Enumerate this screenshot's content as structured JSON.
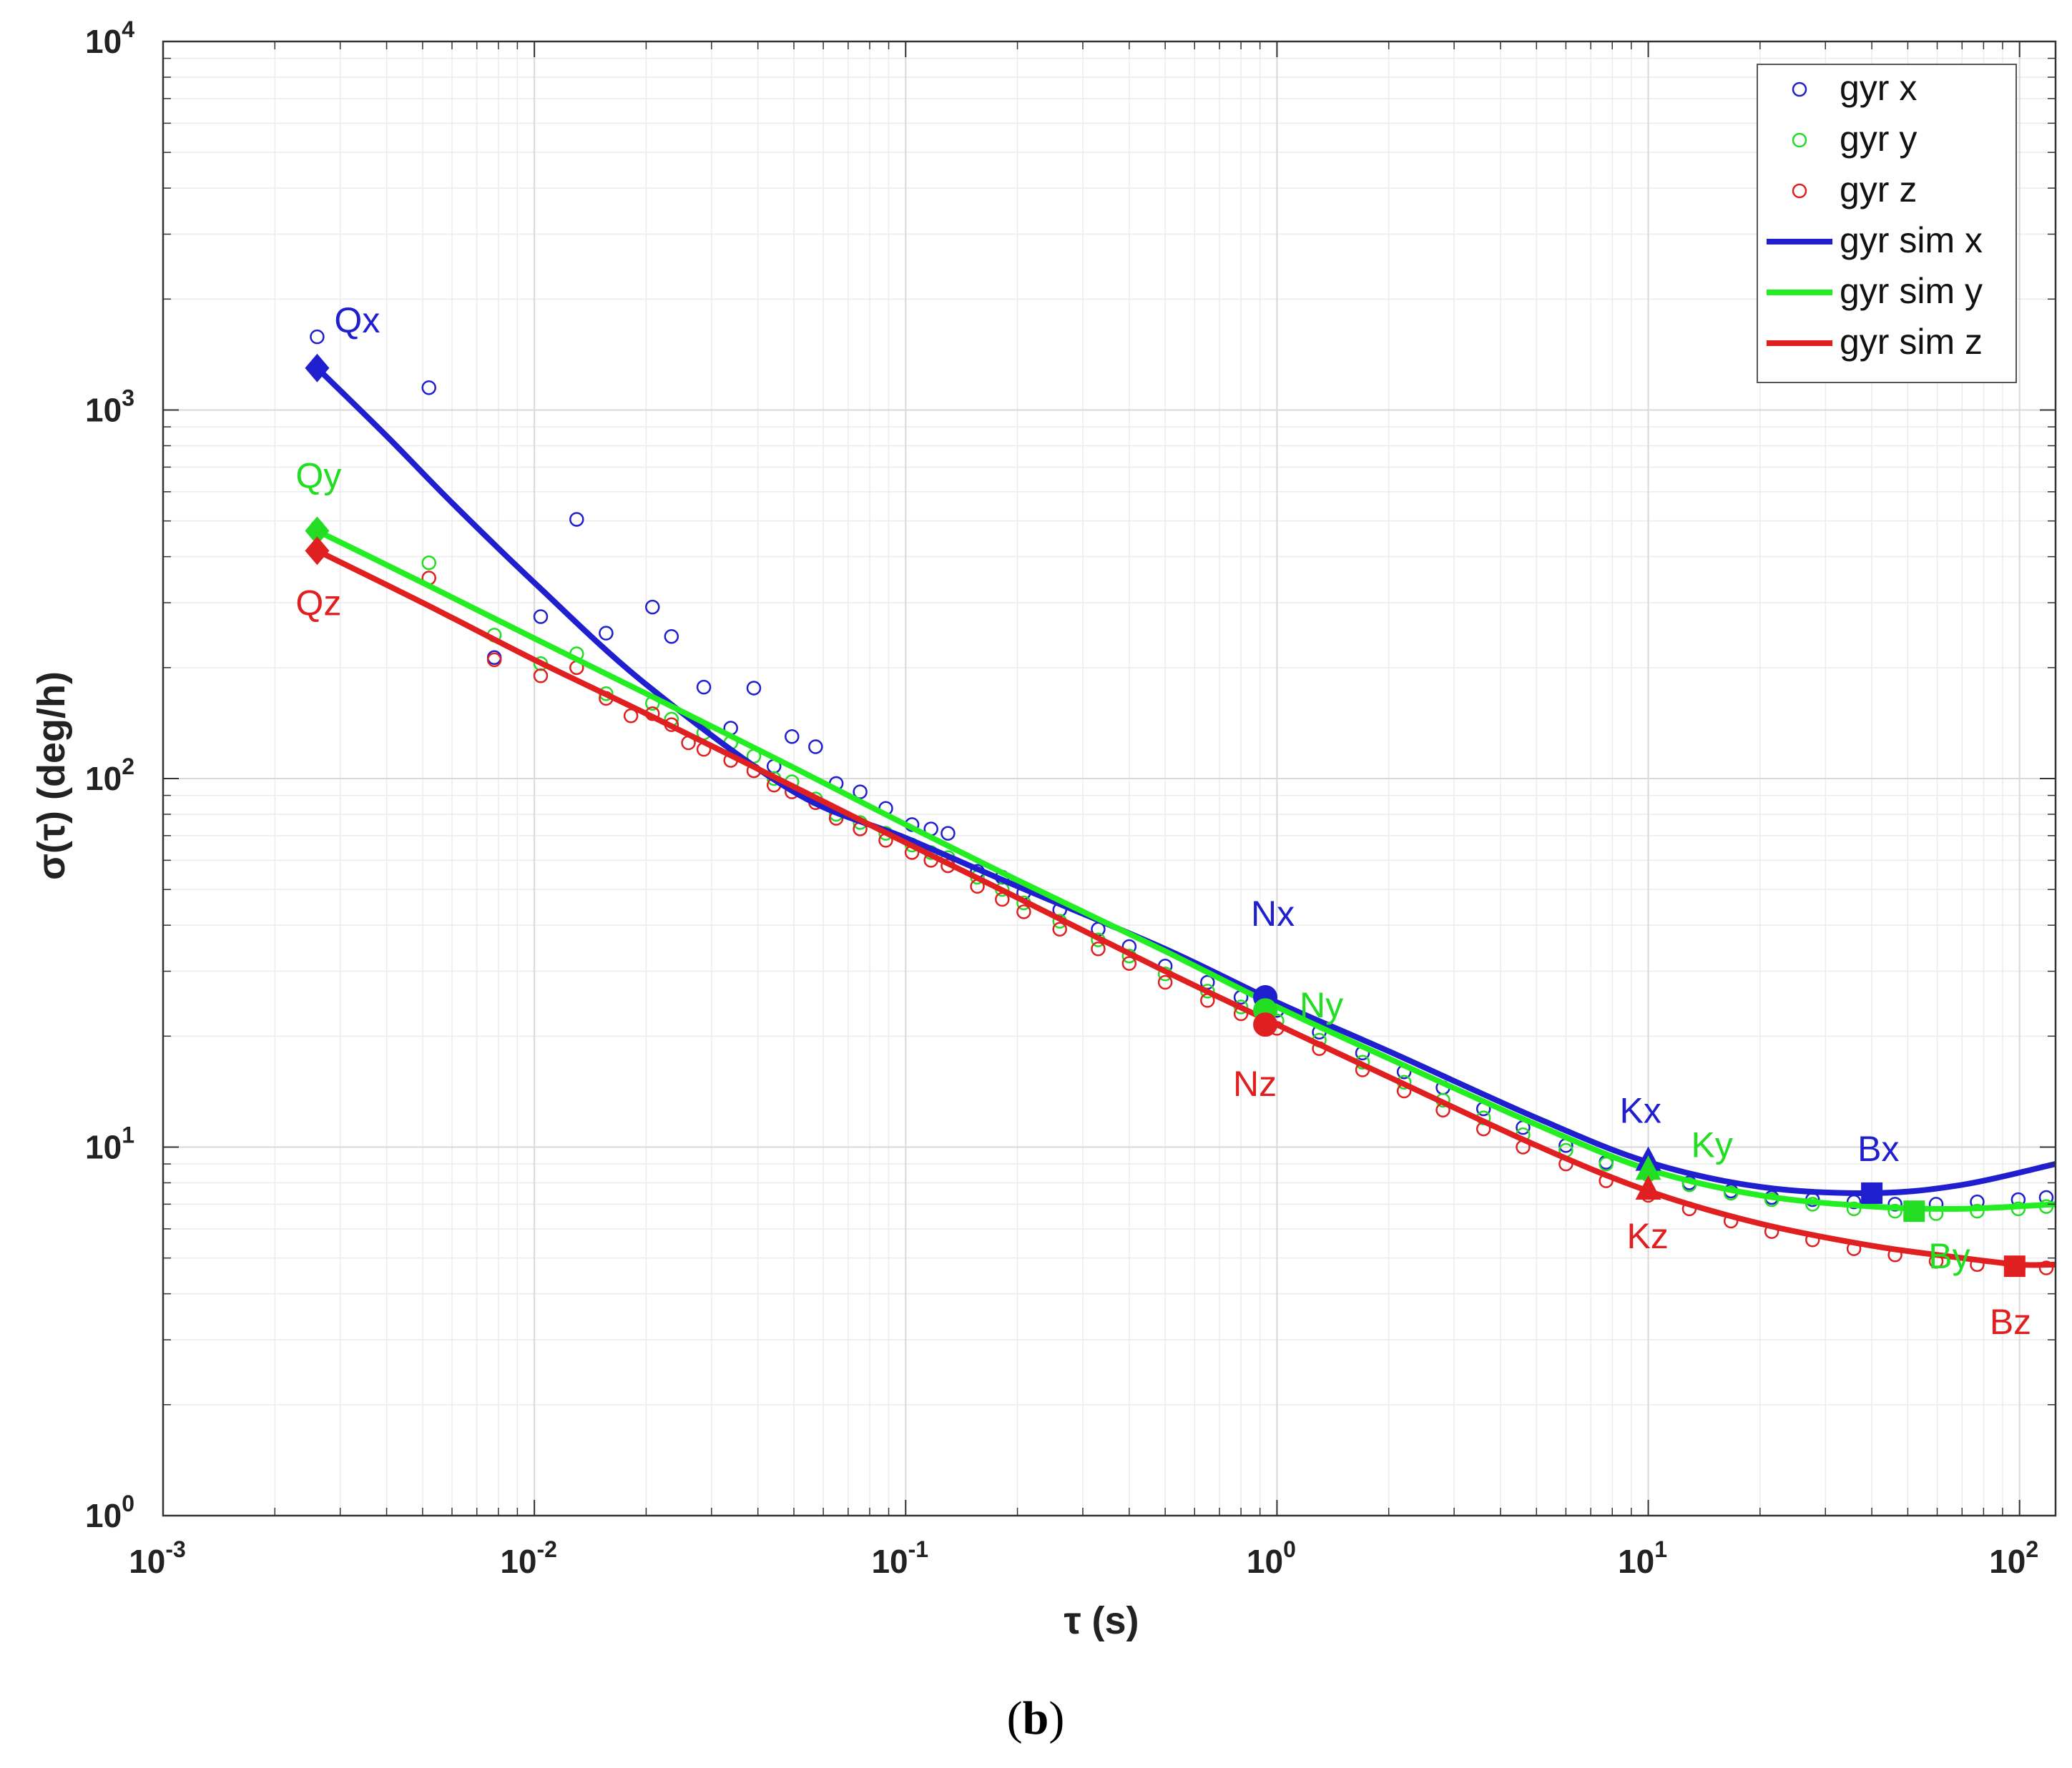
{
  "caption": {
    "open": "(",
    "letter": "b",
    "close": ")"
  },
  "chart_data": {
    "type": "scatter",
    "xscale": "log",
    "yscale": "log",
    "xlim": [
      0.001,
      125
    ],
    "ylim": [
      1,
      10000
    ],
    "xlabel": "τ (s)",
    "ylabel": "σ(τ) (deg/h)",
    "grid": true,
    "legend_position": "top-right",
    "x_ticks": [
      {
        "value": 0.001,
        "base": "10",
        "exp": "-3"
      },
      {
        "value": 0.01,
        "base": "10",
        "exp": "-2"
      },
      {
        "value": 0.1,
        "base": "10",
        "exp": "-1"
      },
      {
        "value": 1,
        "base": "10",
        "exp": "0"
      },
      {
        "value": 10,
        "base": "10",
        "exp": "1"
      },
      {
        "value": 100,
        "base": "10",
        "exp": "2"
      }
    ],
    "y_ticks": [
      {
        "value": 1,
        "base": "10",
        "exp": "0"
      },
      {
        "value": 10,
        "base": "10",
        "exp": "1"
      },
      {
        "value": 100,
        "base": "10",
        "exp": "2"
      },
      {
        "value": 1000,
        "base": "10",
        "exp": "3"
      },
      {
        "value": 10000,
        "base": "10",
        "exp": "4"
      }
    ],
    "series": [
      {
        "name": "gyr x",
        "kind": "markers",
        "color": "#1f1fd0",
        "x": [
          0.0026,
          0.0052,
          0.0078,
          0.0104,
          0.013,
          0.0156,
          0.0208,
          0.0234,
          0.0286,
          0.0338,
          0.039,
          0.0442,
          0.0494,
          0.0572,
          0.065,
          0.0754,
          0.0884,
          0.104,
          0.117,
          0.13,
          0.156,
          0.182,
          0.208,
          0.26,
          0.33,
          0.4,
          0.5,
          0.65,
          0.8,
          1.0,
          1.3,
          1.7,
          2.2,
          2.8,
          3.6,
          4.6,
          6.0,
          7.7,
          10.0,
          12.9,
          16.7,
          21.5,
          27.7,
          35.8,
          46.2,
          59.6,
          76.9,
          99.2,
          118.0
        ],
        "y": [
          1580,
          1150,
          213,
          275,
          505,
          248,
          292,
          243,
          177,
          137,
          176,
          108,
          130,
          122,
          97,
          92,
          83,
          75,
          73,
          71,
          56,
          54,
          49,
          44,
          39,
          35,
          31,
          28,
          25.5,
          23.5,
          20.5,
          18,
          16,
          14.5,
          12.7,
          11.3,
          10.1,
          9.1,
          8.5,
          8.0,
          7.6,
          7.3,
          7.2,
          7.1,
          7.0,
          7.0,
          7.1,
          7.2,
          7.3
        ]
      },
      {
        "name": "gyr y",
        "kind": "markers",
        "color": "#22dd22",
        "x": [
          0.0026,
          0.0052,
          0.0078,
          0.0104,
          0.013,
          0.0156,
          0.0208,
          0.0234,
          0.0286,
          0.0338,
          0.039,
          0.0442,
          0.0494,
          0.0572,
          0.065,
          0.0754,
          0.0884,
          0.104,
          0.117,
          0.13,
          0.156,
          0.182,
          0.208,
          0.26,
          0.33,
          0.4,
          0.5,
          0.65,
          0.8,
          1.0,
          1.3,
          1.7,
          2.2,
          2.8,
          3.6,
          4.6,
          6.0,
          7.7,
          10.0,
          12.9,
          16.7,
          21.5,
          27.7,
          35.8,
          46.2,
          59.6,
          76.9,
          99.2,
          118.0
        ],
        "y": [
          480,
          385,
          245,
          205,
          218,
          170,
          160,
          145,
          133,
          125,
          115,
          100,
          98,
          88,
          80,
          76,
          71,
          66,
          63,
          61,
          54,
          50,
          46,
          41,
          36.5,
          33,
          29.5,
          26.5,
          24,
          22,
          19.5,
          17,
          15,
          13.4,
          12,
          10.8,
          9.8,
          9.0,
          8.4,
          7.9,
          7.5,
          7.2,
          7.0,
          6.8,
          6.7,
          6.6,
          6.7,
          6.8,
          6.9
        ]
      },
      {
        "name": "gyr z",
        "kind": "markers",
        "color": "#e02020",
        "x": [
          0.0026,
          0.0052,
          0.0078,
          0.0104,
          0.013,
          0.0156,
          0.0182,
          0.0208,
          0.0234,
          0.026,
          0.0286,
          0.0338,
          0.039,
          0.0442,
          0.0494,
          0.0572,
          0.065,
          0.0754,
          0.0884,
          0.104,
          0.117,
          0.13,
          0.156,
          0.182,
          0.208,
          0.26,
          0.33,
          0.4,
          0.5,
          0.65,
          0.8,
          1.0,
          1.3,
          1.7,
          2.2,
          2.8,
          3.6,
          4.6,
          6.0,
          7.7,
          10.0,
          12.9,
          16.7,
          21.5,
          27.7,
          35.8,
          46.2,
          59.6,
          76.9,
          99.2,
          118.0
        ],
        "y": [
          420,
          350,
          210,
          190,
          200,
          165,
          148,
          150,
          140,
          125,
          120,
          112,
          105,
          96,
          92,
          86,
          78,
          73,
          68,
          63,
          60,
          58,
          51,
          47,
          43.5,
          39,
          34.5,
          31.5,
          28,
          25,
          23,
          21,
          18.5,
          16.2,
          14.2,
          12.6,
          11.2,
          10.0,
          9.0,
          8.1,
          7.4,
          6.8,
          6.3,
          5.9,
          5.6,
          5.3,
          5.1,
          4.9,
          4.8,
          4.7,
          4.7
        ]
      },
      {
        "name": "gyr sim x",
        "kind": "line",
        "color": "#1f1fd0",
        "x": [
          0.0026,
          0.004,
          0.006,
          0.01,
          0.02,
          0.05,
          0.1,
          0.2,
          0.5,
          1,
          2,
          5,
          10,
          20,
          40,
          70,
          125
        ],
        "y": [
          1300,
          850,
          560,
          340,
          180,
          92,
          69,
          51,
          34.5,
          24.7,
          18.2,
          12.0,
          9.1,
          7.8,
          7.5,
          7.9,
          9.0
        ]
      },
      {
        "name": "gyr sim y",
        "kind": "line",
        "color": "#22ee22",
        "x": [
          0.0026,
          0.005,
          0.01,
          0.02,
          0.05,
          0.1,
          0.2,
          0.5,
          1,
          2,
          5,
          10,
          20,
          40,
          70,
          125
        ],
        "y": [
          470,
          340,
          240,
          170,
          107,
          75,
          53,
          34,
          24,
          17.4,
          11.5,
          8.7,
          7.4,
          6.9,
          6.8,
          7.0
        ]
      },
      {
        "name": "gyr sim z",
        "kind": "line",
        "color": "#e02020",
        "x": [
          0.0026,
          0.005,
          0.01,
          0.02,
          0.05,
          0.1,
          0.2,
          0.5,
          1,
          2,
          5,
          10,
          20,
          40,
          70,
          100,
          125
        ],
        "y": [
          415,
          300,
          210,
          150,
          95,
          67,
          47.5,
          30,
          21.5,
          15.5,
          10.1,
          7.6,
          6.2,
          5.4,
          5.0,
          4.8,
          4.8
        ]
      }
    ],
    "annotations": [
      {
        "label": "Qx",
        "color": "#1f1fd0",
        "marker": "diamond",
        "x": 0.0026,
        "y": 1300,
        "label_dx": 24,
        "label_dy": -50
      },
      {
        "label": "Qy",
        "color": "#22dd22",
        "marker": "diamond",
        "x": 0.0026,
        "y": 470,
        "label_dx": -30,
        "label_dy": -60
      },
      {
        "label": "Qz",
        "color": "#e02020",
        "marker": "diamond",
        "x": 0.0026,
        "y": 415,
        "label_dx": -30,
        "label_dy": 90
      },
      {
        "label": "Nx",
        "color": "#1f1fd0",
        "marker": "circle",
        "x": 0.93,
        "y": 25.5,
        "label_dx": -20,
        "label_dy": -100
      },
      {
        "label": "Ny",
        "color": "#22dd22",
        "marker": "circle",
        "x": 0.93,
        "y": 23.5,
        "label_dx": 48,
        "label_dy": 10
      },
      {
        "label": "Nz",
        "color": "#e02020",
        "marker": "circle",
        "x": 0.93,
        "y": 21.5,
        "label_dx": -45,
        "label_dy": 100
      },
      {
        "label": "Kx",
        "color": "#1f1fd0",
        "marker": "triangle",
        "x": 10,
        "y": 9.1,
        "label_dx": -40,
        "label_dy": -55
      },
      {
        "label": "Ky",
        "color": "#22dd22",
        "marker": "triangle",
        "x": 10,
        "y": 8.6,
        "label_dx": 60,
        "label_dy": -20
      },
      {
        "label": "Kz",
        "color": "#e02020",
        "marker": "triangle",
        "x": 10,
        "y": 7.6,
        "label_dx": -30,
        "label_dy": 80
      },
      {
        "label": "Bx",
        "color": "#1f1fd0",
        "marker": "square",
        "x": 40,
        "y": 7.5,
        "label_dx": -20,
        "label_dy": -45
      },
      {
        "label": "By",
        "color": "#22dd22",
        "marker": "square",
        "x": 52,
        "y": 6.7,
        "label_dx": 20,
        "label_dy": 80
      },
      {
        "label": "Bz",
        "color": "#e02020",
        "marker": "square",
        "x": 97,
        "y": 4.75,
        "label_dx": -35,
        "label_dy": 95
      }
    ]
  }
}
